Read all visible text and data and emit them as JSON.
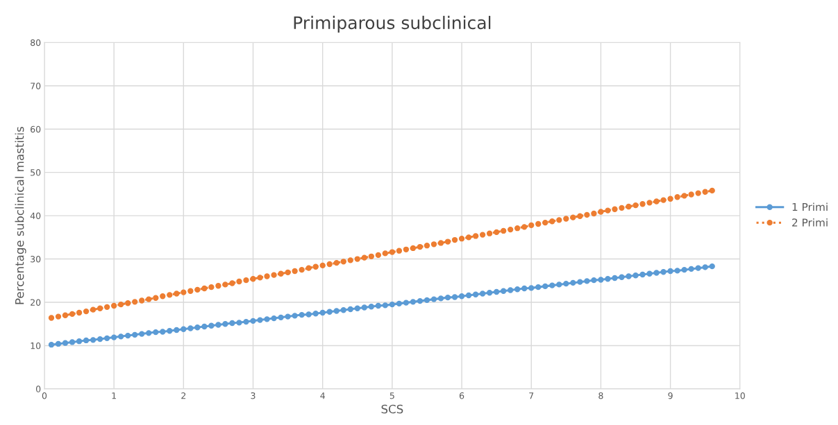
{
  "chart_data": {
    "type": "line",
    "title": "Primiparous subclinical",
    "xlabel": "SCS",
    "ylabel": "Percentage subclinical mastitis",
    "x": [
      0.1,
      0.2,
      0.3,
      0.4,
      0.5,
      0.6,
      0.7,
      0.8,
      0.9,
      1.0,
      1.1,
      1.2,
      1.3,
      1.4,
      1.5,
      1.6,
      1.7,
      1.8,
      1.9,
      2.0,
      2.1,
      2.2,
      2.3,
      2.4,
      2.5,
      2.6,
      2.7,
      2.8,
      2.9,
      3.0,
      3.1,
      3.2,
      3.3,
      3.4,
      3.5,
      3.6,
      3.7,
      3.8,
      3.9,
      4.0,
      4.1,
      4.2,
      4.3,
      4.4,
      4.5,
      4.6,
      4.7,
      4.8,
      4.9,
      5.0,
      5.1,
      5.2,
      5.3,
      5.4,
      5.5,
      5.6,
      5.7,
      5.8,
      5.9,
      6.0,
      6.1,
      6.2,
      6.3,
      6.4,
      6.5,
      6.6,
      6.7,
      6.8,
      6.9,
      7.0,
      7.1,
      7.2,
      7.3,
      7.4,
      7.5,
      7.6,
      7.7,
      7.8,
      7.9,
      8.0,
      8.1,
      8.2,
      8.3,
      8.4,
      8.5,
      8.6,
      8.7,
      8.8,
      8.9,
      9.0,
      9.1,
      9.2,
      9.3,
      9.4,
      9.5,
      9.6
    ],
    "series": [
      {
        "name": "1 Primi",
        "color": "#5b9bd5",
        "line_style": "solid",
        "values": [
          10.2,
          10.4,
          10.6,
          10.8,
          11.0,
          11.2,
          11.3,
          11.5,
          11.7,
          11.9,
          12.1,
          12.3,
          12.5,
          12.7,
          12.9,
          13.1,
          13.2,
          13.4,
          13.6,
          13.8,
          14.0,
          14.2,
          14.4,
          14.6,
          14.8,
          15.0,
          15.2,
          15.3,
          15.5,
          15.7,
          15.9,
          16.1,
          16.3,
          16.5,
          16.7,
          16.9,
          17.1,
          17.2,
          17.4,
          17.6,
          17.8,
          18.0,
          18.2,
          18.4,
          18.6,
          18.8,
          19.0,
          19.2,
          19.3,
          19.5,
          19.7,
          19.9,
          20.1,
          20.3,
          20.5,
          20.7,
          20.9,
          21.1,
          21.2,
          21.4,
          21.6,
          21.8,
          22.0,
          22.2,
          22.4,
          22.6,
          22.8,
          23.0,
          23.2,
          23.3,
          23.5,
          23.7,
          23.9,
          24.1,
          24.3,
          24.5,
          24.7,
          24.9,
          25.1,
          25.2,
          25.4,
          25.6,
          25.8,
          26.0,
          26.2,
          26.4,
          26.6,
          26.8,
          27.0,
          27.2,
          27.3,
          27.5,
          27.7,
          27.9,
          28.1,
          28.3
        ]
      },
      {
        "name": "2 Primi",
        "color": "#ed7d31",
        "line_style": "dotted",
        "values": [
          16.4,
          16.7,
          17.0,
          17.3,
          17.6,
          17.9,
          18.3,
          18.6,
          18.9,
          19.2,
          19.5,
          19.8,
          20.1,
          20.4,
          20.7,
          21.0,
          21.4,
          21.7,
          22.0,
          22.3,
          22.6,
          22.9,
          23.2,
          23.5,
          23.8,
          24.1,
          24.4,
          24.8,
          25.1,
          25.4,
          25.7,
          26.0,
          26.3,
          26.6,
          26.9,
          27.2,
          27.5,
          27.9,
          28.2,
          28.5,
          28.8,
          29.1,
          29.4,
          29.7,
          30.0,
          30.3,
          30.6,
          30.9,
          31.3,
          31.6,
          31.9,
          32.2,
          32.5,
          32.8,
          33.1,
          33.4,
          33.7,
          34.0,
          34.4,
          34.7,
          35.0,
          35.3,
          35.6,
          35.9,
          36.2,
          36.5,
          36.8,
          37.1,
          37.4,
          37.8,
          38.1,
          38.4,
          38.7,
          39.0,
          39.3,
          39.6,
          39.9,
          40.2,
          40.5,
          40.9,
          41.2,
          41.5,
          41.8,
          42.1,
          42.4,
          42.7,
          43.0,
          43.3,
          43.6,
          43.9,
          44.3,
          44.6,
          44.9,
          45.2,
          45.5,
          45.8
        ]
      }
    ],
    "xlim": [
      0,
      10
    ],
    "xticks": [
      0,
      1,
      2,
      3,
      4,
      5,
      6,
      7,
      8,
      9,
      10
    ],
    "ylim": [
      0,
      80
    ],
    "yticks": [
      0,
      10,
      20,
      30,
      40,
      50,
      60,
      70,
      80
    ],
    "grid": true,
    "legend": "right",
    "marker": "circle"
  }
}
